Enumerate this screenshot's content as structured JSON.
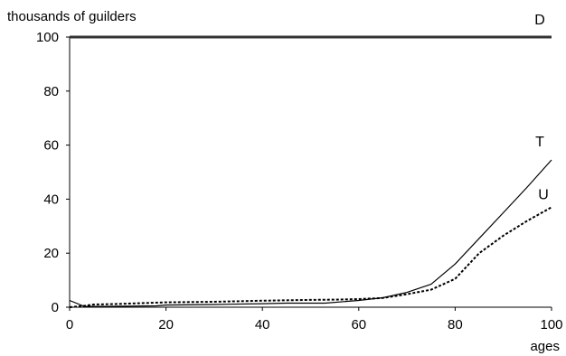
{
  "chart_data": {
    "type": "line",
    "ylabel": "thousands of guilders",
    "xlabel": "ages",
    "xlim": [
      0,
      100
    ],
    "ylim": [
      0,
      100
    ],
    "x_ticks": [
      0,
      20,
      40,
      60,
      80,
      100
    ],
    "y_ticks": [
      0,
      20,
      40,
      60,
      80,
      100
    ],
    "grid": false,
    "series": [
      {
        "name": "D",
        "style": "solid-thick",
        "x": [
          0,
          100
        ],
        "y": [
          100,
          100
        ]
      },
      {
        "name": "T",
        "style": "solid",
        "x": [
          0,
          3,
          8,
          18,
          20,
          30,
          40,
          45,
          53,
          60,
          65,
          70,
          75,
          80,
          85,
          90,
          95,
          100
        ],
        "y": [
          2.5,
          0.3,
          0.3,
          0.5,
          0.8,
          1.0,
          1.3,
          1.5,
          1.5,
          2.5,
          3.5,
          5.5,
          8.5,
          16,
          25.5,
          35,
          44.5,
          54.5
        ]
      },
      {
        "name": "U",
        "style": "dashed",
        "x": [
          0,
          3,
          5,
          10,
          20,
          30,
          40,
          50,
          55,
          60,
          65,
          70,
          75,
          80,
          85,
          90,
          95,
          100
        ],
        "y": [
          0,
          0.5,
          1,
          1.2,
          1.8,
          2.0,
          2.4,
          2.7,
          2.8,
          3.0,
          3.4,
          4.8,
          6.5,
          10.5,
          20,
          26.5,
          32,
          37
        ]
      }
    ]
  }
}
